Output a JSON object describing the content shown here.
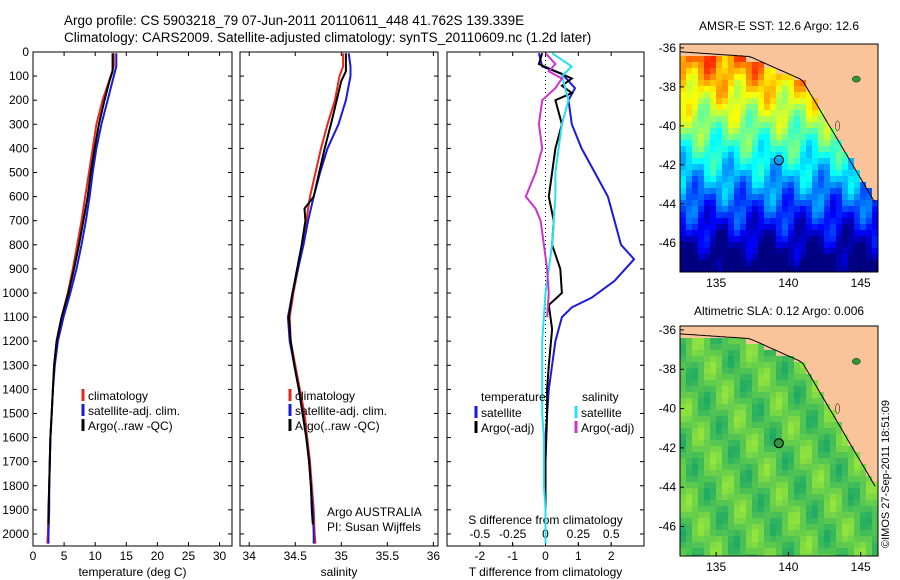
{
  "header": {
    "line1": "Argo profile: CS 5903218_79 07-Jun-2011 20110611_448 41.762S 139.339E",
    "line2": "Climatology: CARS2009. Satellite-adjusted climatology: synTS_20110609.nc (1.2d later)"
  },
  "timestamp": "©IMOS 27-Sep-2011 18:51:09",
  "colors": {
    "climatology": "#e8271c",
    "satellite": "#1a1adc",
    "argo": "#000000",
    "sat_s": "#25e1ef",
    "argo_s": "#cc33cc",
    "land": "#f9c49a"
  },
  "chart_data": [
    {
      "type": "line",
      "id": "temperature",
      "xlabel": "temperature (deg C)",
      "xlim": [
        0,
        32
      ],
      "xticks": [
        0,
        5,
        10,
        15,
        20,
        25,
        30
      ],
      "ylim": [
        0,
        2050
      ],
      "yticks": [
        0,
        100,
        200,
        300,
        400,
        500,
        600,
        700,
        800,
        900,
        1000,
        1100,
        1200,
        1300,
        1400,
        1500,
        1600,
        1700,
        1800,
        1900,
        2000
      ],
      "legend": [
        "climatology",
        "satellite-adj. clim.",
        "Argo(..raw -QC)"
      ],
      "series": [
        {
          "name": "climatology",
          "color": "#e8271c",
          "points": [
            [
              13,
              5
            ],
            [
              13,
              60
            ],
            [
              12.5,
              100
            ],
            [
              11.2,
              200
            ],
            [
              10.2,
              300
            ],
            [
              9.6,
              400
            ],
            [
              9.0,
              500
            ],
            [
              8.4,
              600
            ],
            [
              7.8,
              700
            ],
            [
              7.1,
              800
            ],
            [
              6.4,
              900
            ],
            [
              5.6,
              1000
            ],
            [
              4.6,
              1100
            ],
            [
              3.8,
              1200
            ],
            [
              3.4,
              1300
            ],
            [
              3.2,
              1400
            ],
            [
              3.0,
              1500
            ],
            [
              2.8,
              1600
            ],
            [
              2.7,
              1700
            ],
            [
              2.6,
              1800
            ],
            [
              2.5,
              1900
            ],
            [
              2.4,
              2000
            ],
            [
              2.3,
              2040
            ]
          ]
        },
        {
          "name": "satellite-adj. clim.",
          "color": "#1a1adc",
          "points": [
            [
              13.4,
              5
            ],
            [
              13.4,
              60
            ],
            [
              13,
              100
            ],
            [
              12.0,
              200
            ],
            [
              11.0,
              300
            ],
            [
              10.2,
              400
            ],
            [
              9.6,
              500
            ],
            [
              9.1,
              600
            ],
            [
              8.5,
              700
            ],
            [
              7.8,
              800
            ],
            [
              7.0,
              900
            ],
            [
              6.0,
              1000
            ],
            [
              4.9,
              1100
            ],
            [
              4.0,
              1200
            ],
            [
              3.5,
              1300
            ],
            [
              3.2,
              1400
            ],
            [
              3.0,
              1500
            ],
            [
              2.8,
              1600
            ],
            [
              2.7,
              1700
            ],
            [
              2.6,
              1800
            ],
            [
              2.6,
              1900
            ],
            [
              2.5,
              2000
            ],
            [
              2.5,
              2040
            ]
          ]
        },
        {
          "name": "Argo(..raw -QC)",
          "color": "#000000",
          "points": [
            [
              12.8,
              5
            ],
            [
              12.8,
              80
            ],
            [
              12.3,
              120
            ],
            [
              11.5,
              200
            ],
            [
              10.6,
              300
            ],
            [
              9.9,
              400
            ],
            [
              9.3,
              500
            ],
            [
              8.8,
              600
            ],
            [
              8.1,
              700
            ],
            [
              7.4,
              800
            ],
            [
              6.6,
              900
            ],
            [
              5.7,
              1000
            ],
            [
              4.6,
              1100
            ],
            [
              3.8,
              1200
            ],
            [
              3.4,
              1300
            ],
            [
              3.2,
              1400
            ],
            [
              3.0,
              1500
            ],
            [
              2.8,
              1600
            ],
            [
              2.7,
              1700
            ],
            [
              2.6,
              1800
            ],
            [
              2.5,
              1900
            ],
            [
              2.5,
              1960
            ]
          ]
        }
      ]
    },
    {
      "type": "line",
      "id": "salinity",
      "xlabel": "salinity",
      "xlim": [
        33.9,
        36.05
      ],
      "xticks": [
        34,
        34.5,
        35,
        35.5,
        36
      ],
      "ylim": [
        0,
        2050
      ],
      "legend": [
        "climatology",
        "satellite-adj. clim.",
        "Argo(..raw -QC)"
      ],
      "annotation": [
        "Argo AUSTRALIA",
        "PI: Susan Wijffels"
      ],
      "series": [
        {
          "name": "climatology",
          "color": "#e8271c",
          "points": [
            [
              35.02,
              5
            ],
            [
              35.02,
              60
            ],
            [
              34.98,
              100
            ],
            [
              34.93,
              200
            ],
            [
              34.85,
              300
            ],
            [
              34.78,
              400
            ],
            [
              34.72,
              500
            ],
            [
              34.66,
              600
            ],
            [
              34.62,
              700
            ],
            [
              34.58,
              800
            ],
            [
              34.53,
              900
            ],
            [
              34.48,
              1000
            ],
            [
              34.44,
              1100
            ],
            [
              34.45,
              1200
            ],
            [
              34.5,
              1300
            ],
            [
              34.55,
              1400
            ],
            [
              34.6,
              1500
            ],
            [
              34.63,
              1600
            ],
            [
              34.66,
              1700
            ],
            [
              34.68,
              1800
            ],
            [
              34.7,
              1900
            ],
            [
              34.71,
              2000
            ],
            [
              34.72,
              2040
            ]
          ]
        },
        {
          "name": "satellite-adj. clim.",
          "color": "#1a1adc",
          "points": [
            [
              35.08,
              5
            ],
            [
              35.1,
              60
            ],
            [
              35.1,
              100
            ],
            [
              35.05,
              200
            ],
            [
              34.97,
              300
            ],
            [
              34.85,
              400
            ],
            [
              34.77,
              500
            ],
            [
              34.7,
              600
            ],
            [
              34.64,
              700
            ],
            [
              34.59,
              800
            ],
            [
              34.53,
              900
            ],
            [
              34.47,
              1000
            ],
            [
              34.42,
              1100
            ],
            [
              34.44,
              1200
            ],
            [
              34.49,
              1300
            ],
            [
              34.54,
              1400
            ],
            [
              34.58,
              1500
            ],
            [
              34.62,
              1600
            ],
            [
              34.65,
              1700
            ],
            [
              34.67,
              1800
            ],
            [
              34.69,
              1900
            ],
            [
              34.7,
              2000
            ],
            [
              34.7,
              2040
            ]
          ]
        },
        {
          "name": "Argo(..raw -QC)",
          "color": "#000000",
          "points": [
            [
              35.05,
              5
            ],
            [
              35.05,
              80
            ],
            [
              35.0,
              120
            ],
            [
              34.95,
              200
            ],
            [
              34.9,
              280
            ],
            [
              34.82,
              400
            ],
            [
              34.76,
              500
            ],
            [
              34.7,
              600
            ],
            [
              34.6,
              650
            ],
            [
              34.61,
              700
            ],
            [
              34.57,
              800
            ],
            [
              34.52,
              900
            ],
            [
              34.47,
              1000
            ],
            [
              34.43,
              1100
            ],
            [
              34.45,
              1200
            ],
            [
              34.49,
              1300
            ],
            [
              34.54,
              1400
            ],
            [
              34.58,
              1500
            ],
            [
              34.62,
              1600
            ],
            [
              34.65,
              1700
            ],
            [
              34.67,
              1800
            ],
            [
              34.68,
              1900
            ],
            [
              34.69,
              1960
            ]
          ]
        }
      ]
    },
    {
      "type": "line",
      "id": "differences",
      "xlabel": "T difference from climatology",
      "xlabel2": "S difference from climatology",
      "xlim": [
        -3,
        3
      ],
      "xticks": [
        -2,
        -1,
        0,
        1,
        2
      ],
      "xticks2": [
        -0.5,
        -0.25,
        0,
        0.25,
        0.5
      ],
      "xticklabels2": [
        "-0.5",
        "-0.25",
        "0",
        "0.25",
        "0.5"
      ],
      "ylim": [
        0,
        2050
      ],
      "legend_headers": [
        "temperature",
        "salinity"
      ],
      "legend": [
        "satellite",
        "Argo(-adj)",
        "satellite",
        "Argo(-adj)"
      ],
      "series": [
        {
          "name": "satellite",
          "group": "temperature",
          "color": "#1a1adc",
          "points": [
            [
              -0.2,
              5
            ],
            [
              -0.1,
              60
            ],
            [
              0.5,
              90
            ],
            [
              0.9,
              150
            ],
            [
              0.7,
              200
            ],
            [
              0.8,
              300
            ],
            [
              1.1,
              400
            ],
            [
              1.5,
              500
            ],
            [
              1.9,
              600
            ],
            [
              2.1,
              700
            ],
            [
              2.3,
              800
            ],
            [
              2.7,
              860
            ],
            [
              2.1,
              950
            ],
            [
              1.4,
              1020
            ],
            [
              0.8,
              1060
            ],
            [
              0.5,
              1100
            ],
            [
              0.3,
              1200
            ],
            [
              0.2,
              1300
            ],
            [
              0.1,
              1400
            ],
            [
              0.05,
              1500
            ],
            [
              0,
              1600
            ],
            [
              0,
              1800
            ],
            [
              0,
              2040
            ]
          ]
        },
        {
          "name": "Argo(-adj)",
          "group": "temperature",
          "color": "#000000",
          "points": [
            [
              -0.1,
              5
            ],
            [
              -0.2,
              50
            ],
            [
              0.3,
              80
            ],
            [
              0.8,
              110
            ],
            [
              0.5,
              140
            ],
            [
              0.8,
              170
            ],
            [
              0.3,
              200
            ],
            [
              0.5,
              300
            ],
            [
              0.3,
              400
            ],
            [
              0.2,
              500
            ],
            [
              0.1,
              600
            ],
            [
              0.25,
              700
            ],
            [
              0.2,
              800
            ],
            [
              0.45,
              900
            ],
            [
              0.5,
              1000
            ],
            [
              0.1,
              1050
            ],
            [
              0.2,
              1150
            ],
            [
              0.1,
              1300
            ],
            [
              0.05,
              1400
            ],
            [
              0.05,
              1500
            ],
            [
              0,
              1700
            ],
            [
              0,
              1960
            ]
          ]
        },
        {
          "name": "satellite",
          "group": "salinity",
          "color": "#25e1ef",
          "points": [
            [
              0.2,
              5
            ],
            [
              0.8,
              60
            ],
            [
              0.5,
              100
            ],
            [
              0.6,
              150
            ],
            [
              0.7,
              200
            ],
            [
              0.5,
              300
            ],
            [
              0.4,
              400
            ],
            [
              0.3,
              500
            ],
            [
              0.3,
              600
            ],
            [
              0.25,
              700
            ],
            [
              0.2,
              800
            ],
            [
              0.1,
              900
            ],
            [
              0,
              1000
            ],
            [
              -0.05,
              1100
            ],
            [
              -0.1,
              1200
            ],
            [
              -0.1,
              1300
            ],
            [
              -0.1,
              1400
            ],
            [
              -0.1,
              1500
            ],
            [
              -0.05,
              1600
            ],
            [
              -0.05,
              1800
            ],
            [
              0,
              1900
            ],
            [
              0,
              2040
            ]
          ]
        },
        {
          "name": "Argo(-adj)",
          "group": "salinity",
          "color": "#cc33cc",
          "points": [
            [
              0,
              5
            ],
            [
              0.3,
              50
            ],
            [
              0.1,
              80
            ],
            [
              0.5,
              110
            ],
            [
              0.3,
              150
            ],
            [
              -0.1,
              200
            ],
            [
              -0.2,
              300
            ],
            [
              -0.1,
              400
            ],
            [
              -0.3,
              500
            ],
            [
              -0.6,
              600
            ],
            [
              -0.3,
              650
            ],
            [
              -0.15,
              700
            ],
            [
              -0.05,
              800
            ],
            [
              0.05,
              900
            ],
            [
              0.1,
              1000
            ],
            [
              0.05,
              1100
            ]
          ]
        }
      ]
    }
  ],
  "maps": [
    {
      "id": "sst",
      "title": "AMSR-E SST: 12.6 Argo: 12.6",
      "xticks": [
        135,
        140,
        145
      ],
      "yticks": [
        -36,
        -38,
        -40,
        -42,
        -44,
        -46
      ],
      "ytick_labels": [
        "-36",
        "-38",
        "-40",
        "-42",
        "-44",
        "-46"
      ],
      "argo_marker": {
        "lon": 139.339,
        "lat": -41.762,
        "filled": false
      },
      "colormap": "jet"
    },
    {
      "id": "sla",
      "title": "Altimetric SLA: 0.12 Argo: 0.006",
      "xticks": [
        135,
        140,
        145
      ],
      "yticks": [
        -36,
        -38,
        -40,
        -42,
        -44,
        -46
      ],
      "ytick_labels": [
        "-36",
        "-38",
        "-40",
        "-42",
        "-44",
        "-46"
      ],
      "argo_marker": {
        "lon": 139.339,
        "lat": -41.762,
        "filled": true
      },
      "colormap": "green"
    }
  ]
}
